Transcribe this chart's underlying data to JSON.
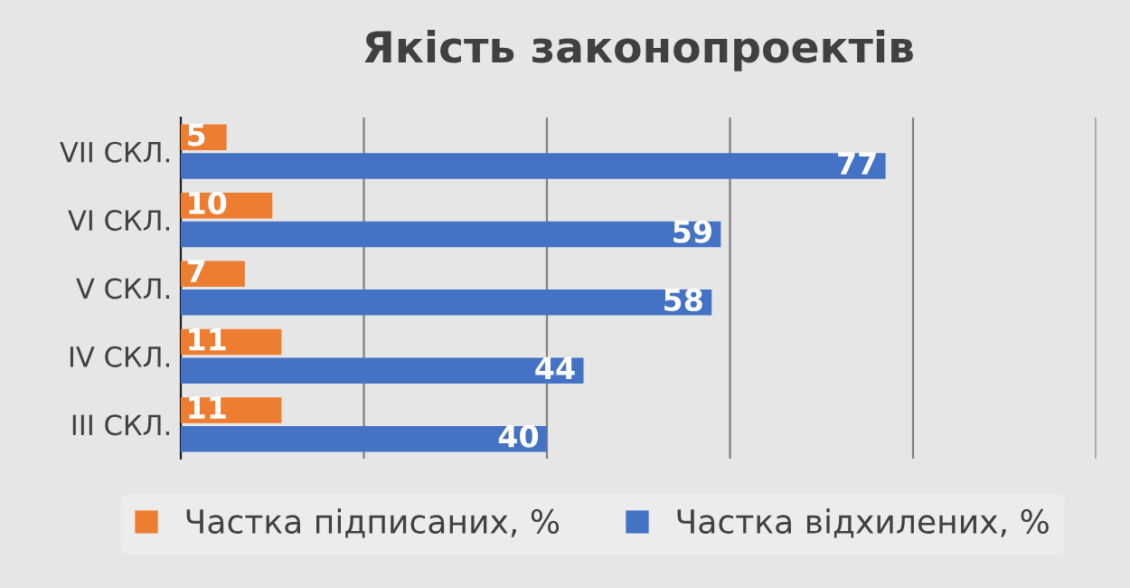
{
  "chart_data": {
    "type": "bar",
    "orientation": "horizontal",
    "title": "Якість законопроектів",
    "categories": [
      "VII СКЛ.",
      "VI СКЛ.",
      "V СКЛ.",
      "IV СКЛ.",
      "III СКЛ."
    ],
    "series": [
      {
        "name": "Частка підписаних, %",
        "color": "#ed7d31",
        "values": [
          5,
          10,
          7,
          11,
          11
        ]
      },
      {
        "name": "Частка відхилених, %",
        "color": "#4472c4",
        "values": [
          77,
          59,
          58,
          44,
          40
        ]
      }
    ],
    "xlim": [
      0,
      100
    ],
    "xticks": [
      {
        "value": 0,
        "label": null
      },
      {
        "value": 20,
        "label": null
      },
      {
        "value": 40,
        "label": null
      },
      {
        "value": 60,
        "label": null
      },
      {
        "value": 80,
        "label": null
      },
      {
        "value": 100,
        "label": null
      }
    ],
    "tick_labels": "y",
    "grid": "x",
    "legend": "bottom",
    "data_labels": true
  }
}
